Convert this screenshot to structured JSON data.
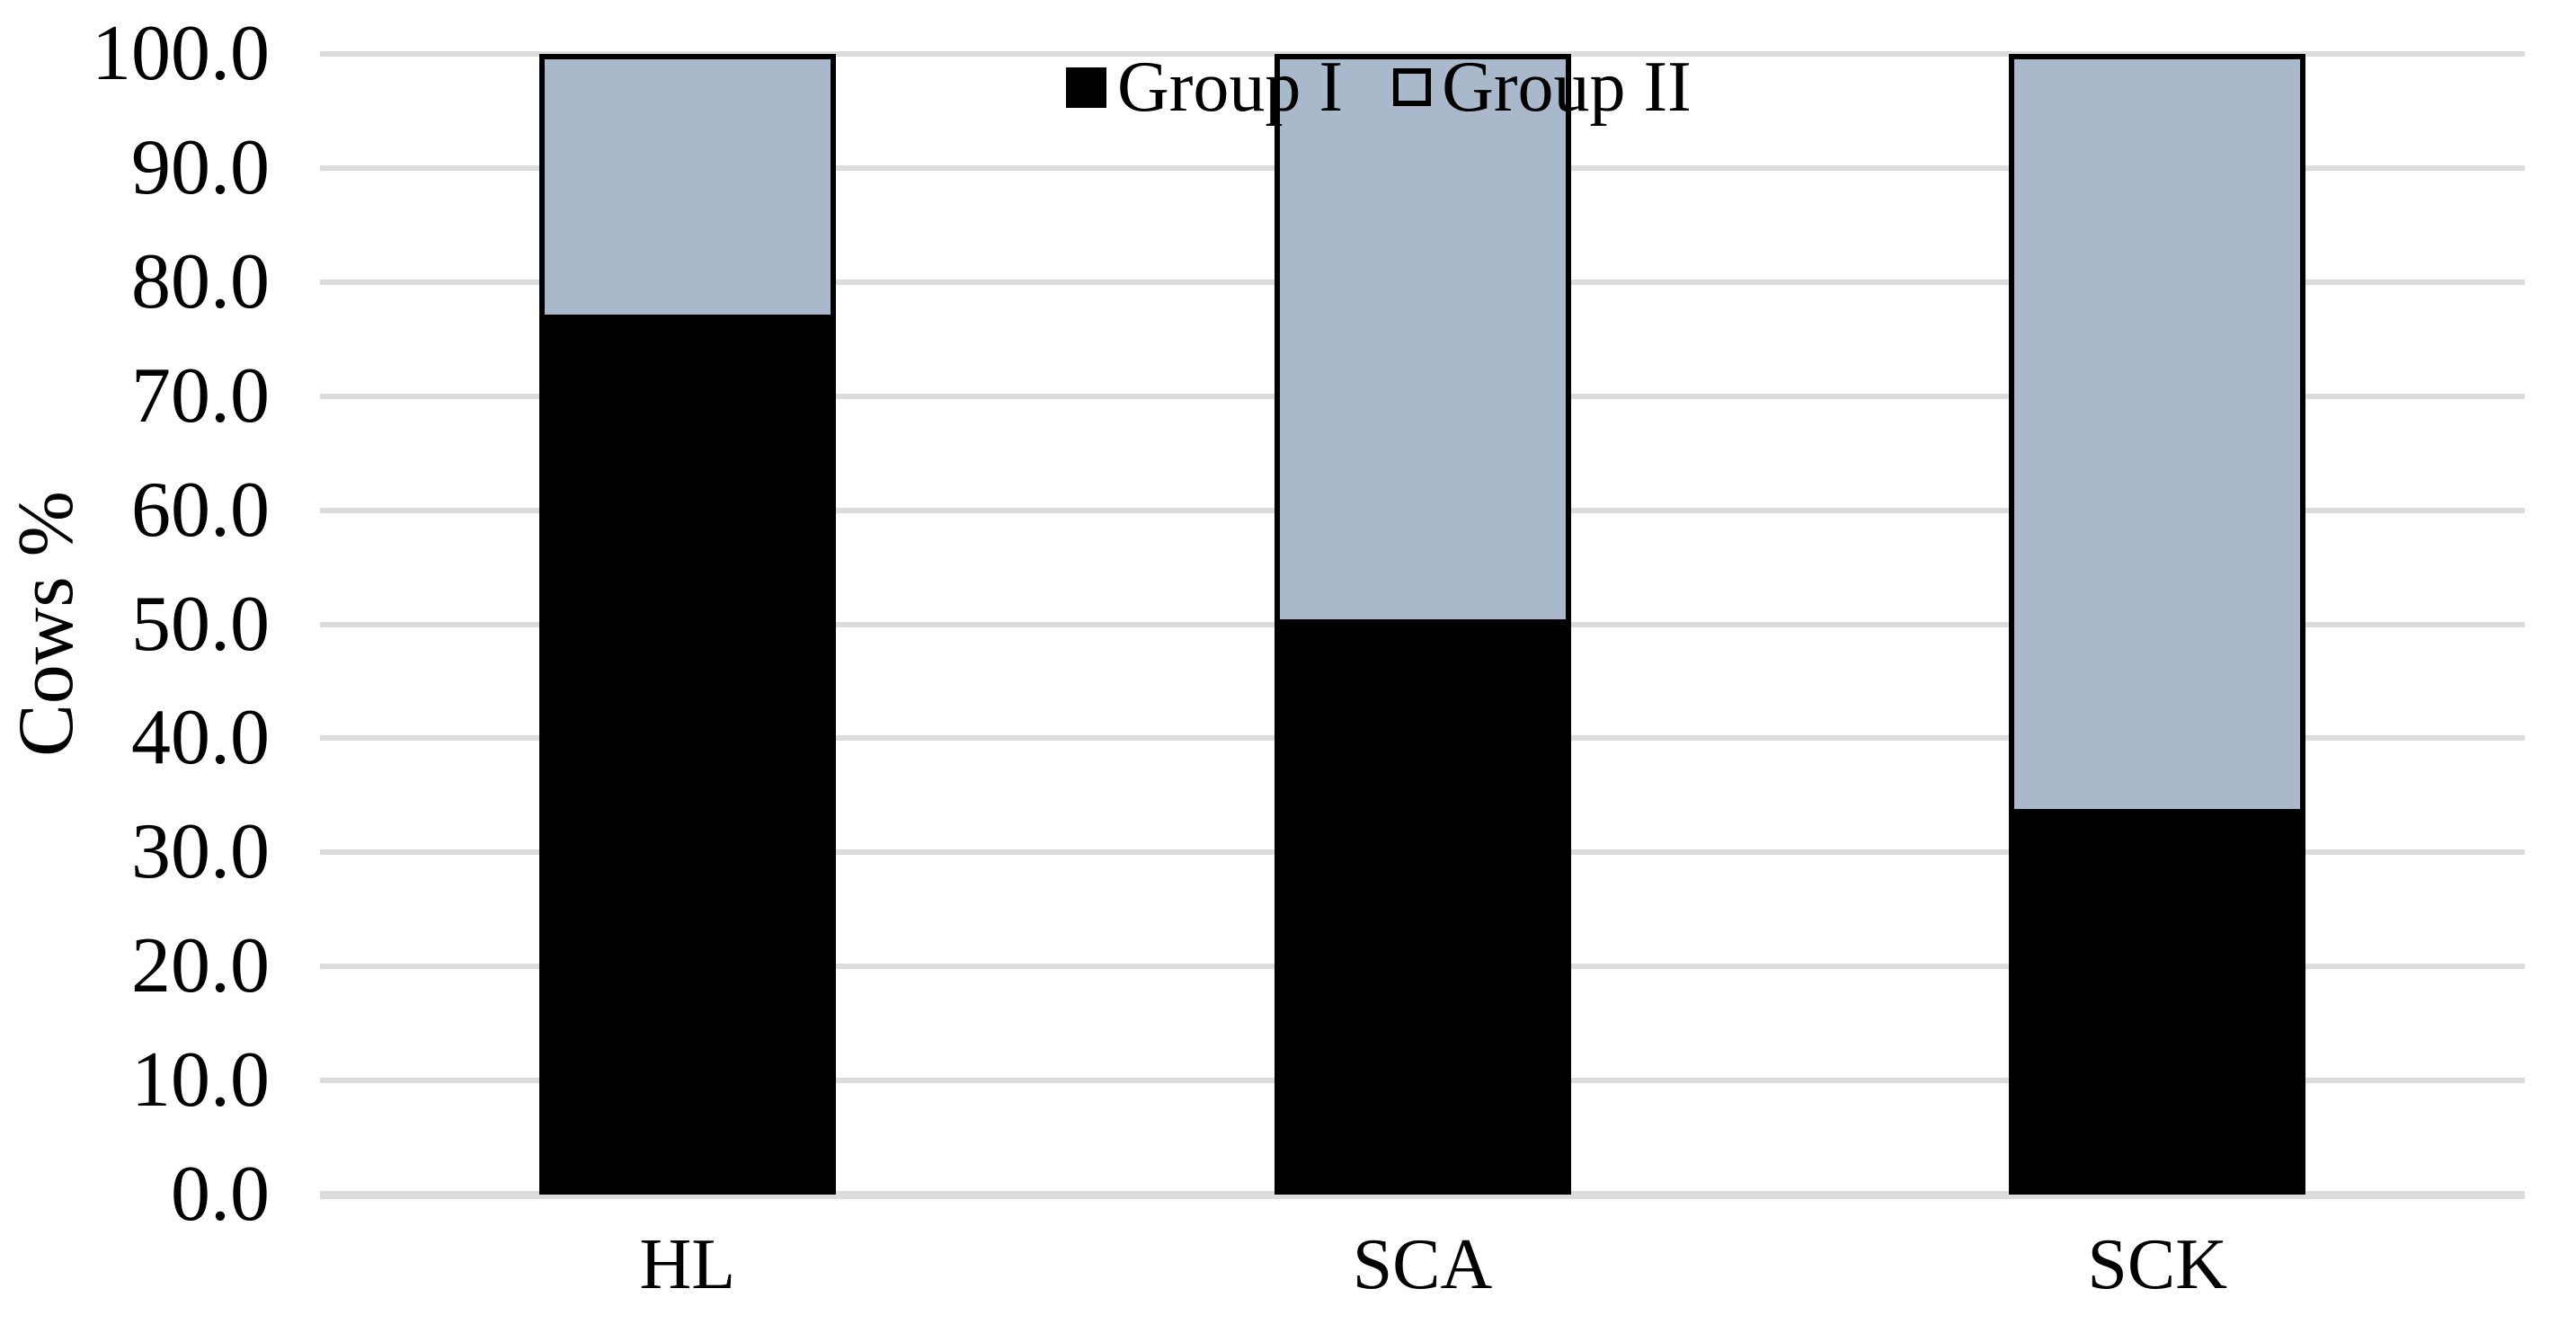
{
  "chart_data": {
    "type": "bar",
    "stacked": true,
    "title": "",
    "xlabel": "",
    "ylabel": "Cows %",
    "categories": [
      "HL",
      "SCA",
      "SCK"
    ],
    "series": [
      {
        "name": "Group I",
        "color": "#000000",
        "values": [
          76.7,
          50.0,
          33.3
        ]
      },
      {
        "name": "Group II",
        "color": "#A9B9CB",
        "values": [
          23.3,
          50.0,
          66.7
        ]
      }
    ],
    "ylim": [
      0,
      100
    ],
    "ytick_step": 10,
    "ytick_labels": [
      "0.0",
      "10.0",
      "20.0",
      "30.0",
      "40.0",
      "50.0",
      "60.0",
      "70.0",
      "80.0",
      "90.0",
      "100.0"
    ],
    "grid": "horizontal",
    "gridline_color": "#DCDCDC",
    "legend_position": "top-center",
    "background_color": "#FFFFFF"
  }
}
